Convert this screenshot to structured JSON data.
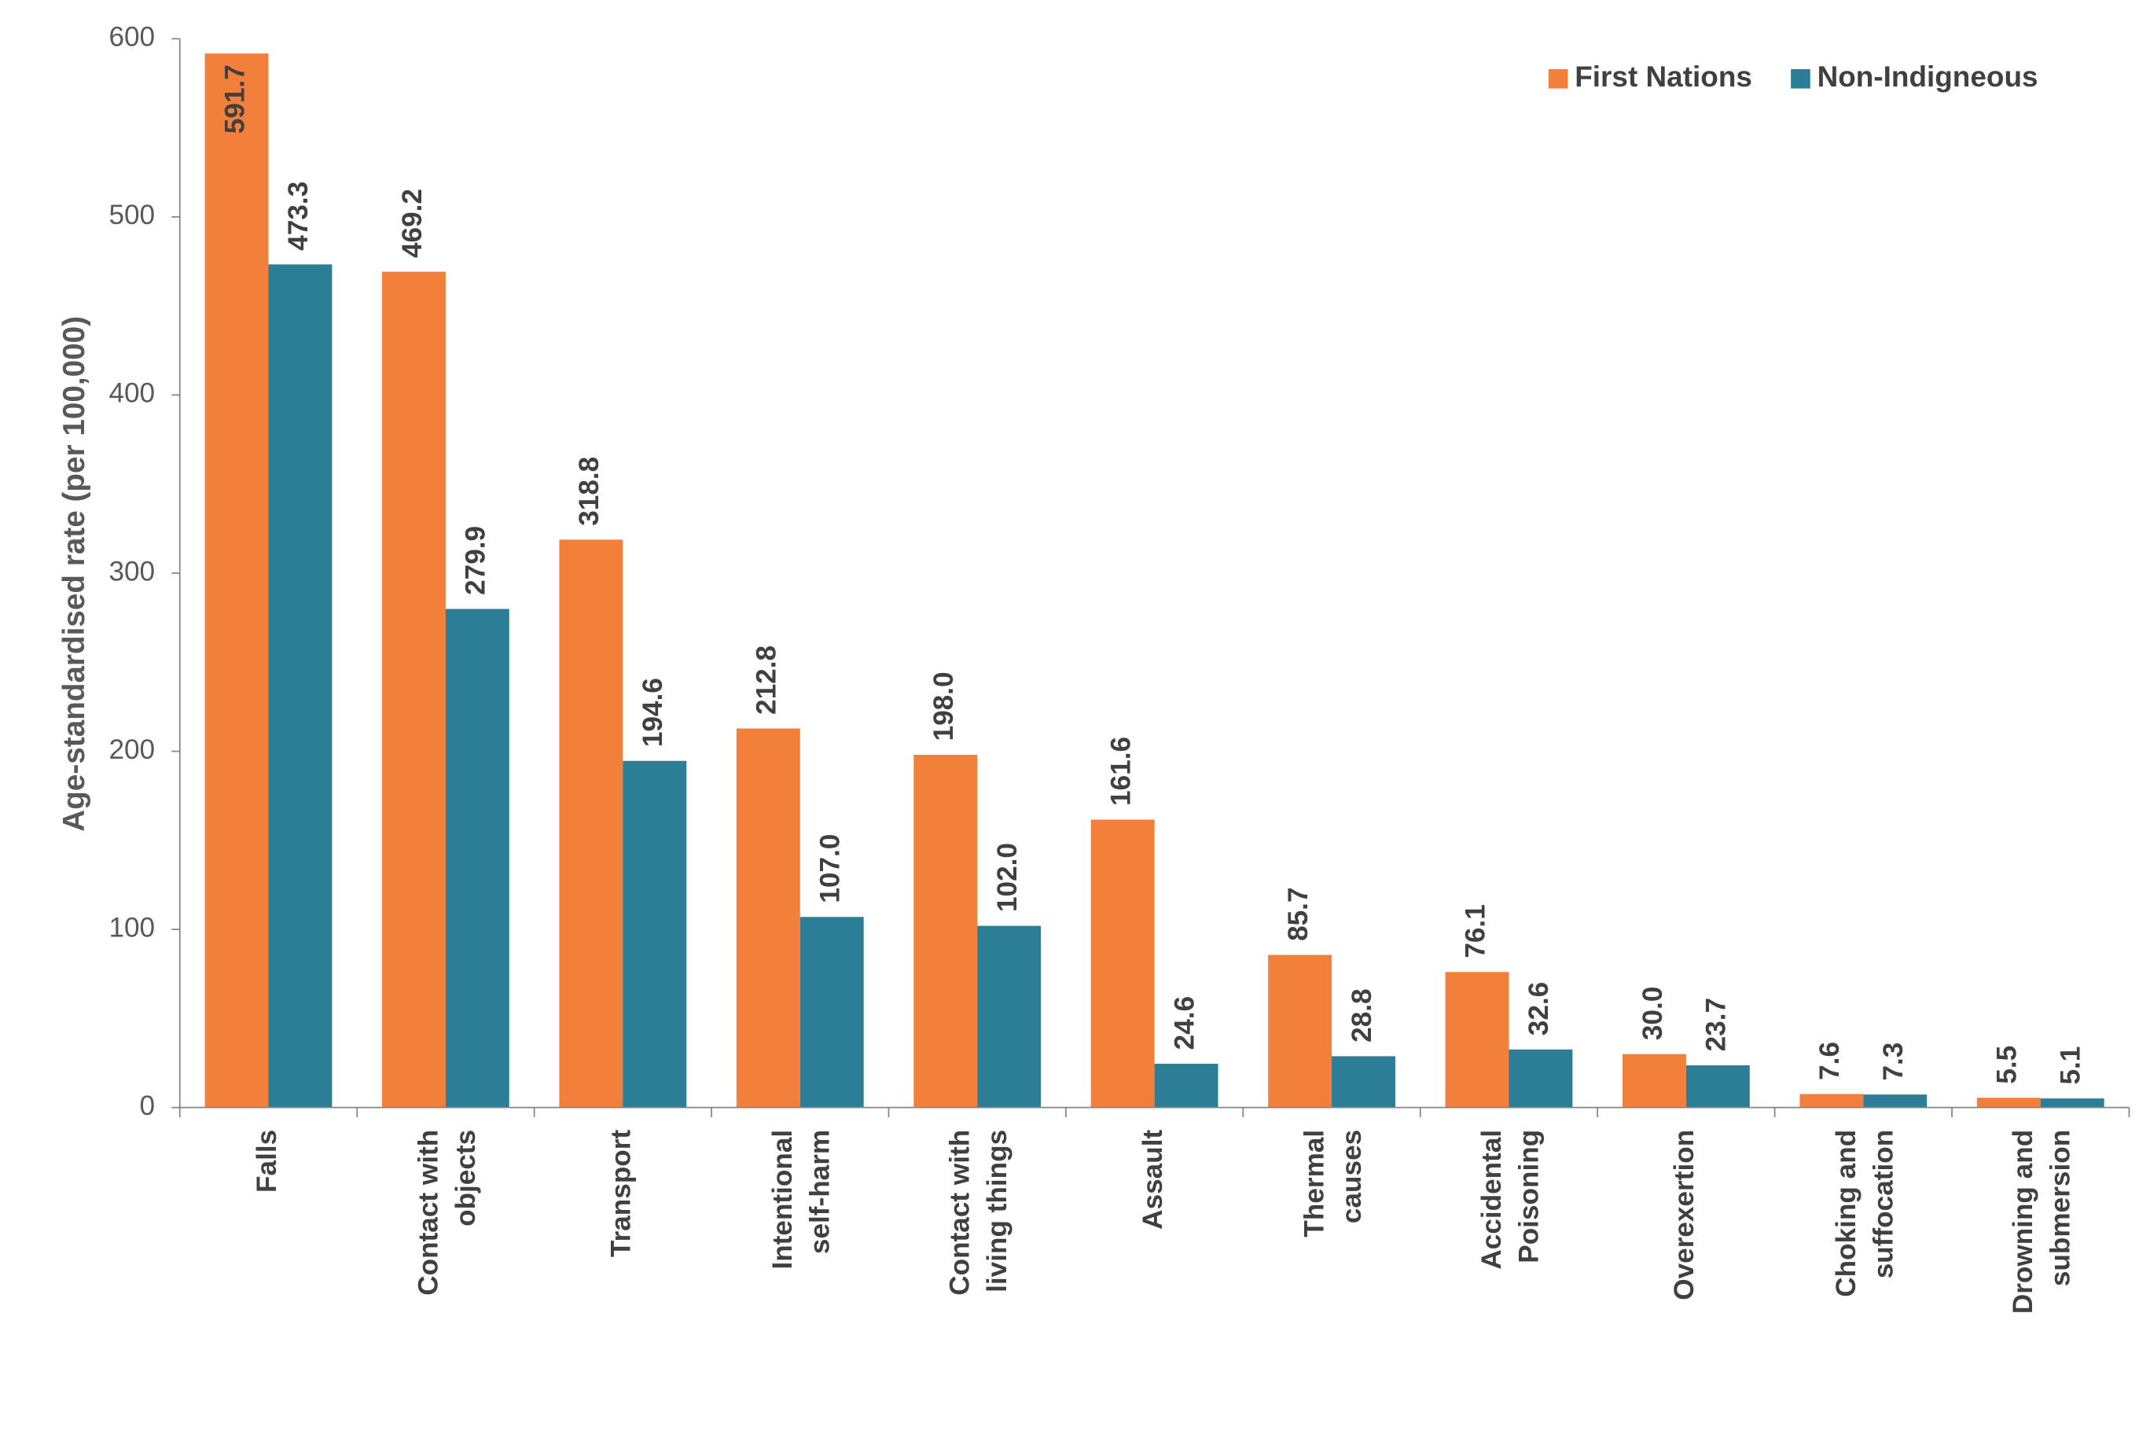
{
  "chart_data": {
    "type": "bar",
    "y_axis_label": "Age-standardised rate (per 100,000)",
    "categories": [
      "Falls",
      "Contact with objects",
      "Transport",
      "Intentional self-harm",
      "Contact with living things",
      "Assault",
      "Thermal causes",
      "Accidental Poisoning",
      "Overexertion",
      "Choking and suffocation",
      "Drowning and submersion"
    ],
    "series": [
      {
        "name": "First Nations",
        "color": "#f27f3a",
        "values": [
          591.7,
          469.2,
          318.8,
          212.8,
          198.0,
          161.6,
          85.7,
          76.1,
          30.0,
          7.6,
          5.5
        ],
        "value_labels": [
          "591.7",
          "469.2",
          "318.8",
          "212.8",
          "198.0",
          "161.6",
          "85.7",
          "76.1",
          "30.0",
          "7.6",
          "5.5"
        ]
      },
      {
        "name": "Non-Indigneous",
        "color": "#2c7d96",
        "values": [
          473.3,
          279.9,
          194.6,
          107.0,
          102.0,
          24.6,
          28.8,
          32.6,
          23.7,
          7.3,
          5.1
        ],
        "value_labels": [
          "473.3",
          "279.9",
          "194.6",
          "107.0",
          "102.0",
          "24.6",
          "28.8",
          "32.6",
          "23.7",
          "7.3",
          "5.1"
        ]
      }
    ],
    "ylim": [
      0,
      600
    ],
    "yticks": [
      0,
      100,
      200,
      300,
      400,
      500,
      600
    ],
    "grid": false,
    "legend": "top-right"
  }
}
